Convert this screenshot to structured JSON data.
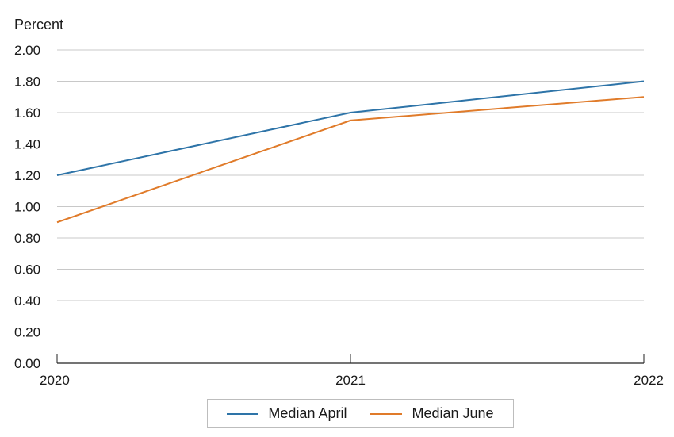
{
  "chart_data": {
    "type": "line",
    "ylabel": "Percent",
    "x": [
      "2020",
      "2021",
      "2022"
    ],
    "ylim": [
      0,
      2
    ],
    "yticks": [
      "0.00",
      "0.20",
      "0.40",
      "0.60",
      "0.80",
      "1.00",
      "1.20",
      "1.40",
      "1.60",
      "1.80",
      "2.00"
    ],
    "grid": true,
    "legend_position": "bottom",
    "series": [
      {
        "name": "Median April",
        "color": "#2e74a8",
        "values": [
          1.2,
          1.6,
          1.8
        ]
      },
      {
        "name": "Median June",
        "color": "#e07b2a",
        "values": [
          0.9,
          1.55,
          1.7
        ]
      }
    ]
  }
}
